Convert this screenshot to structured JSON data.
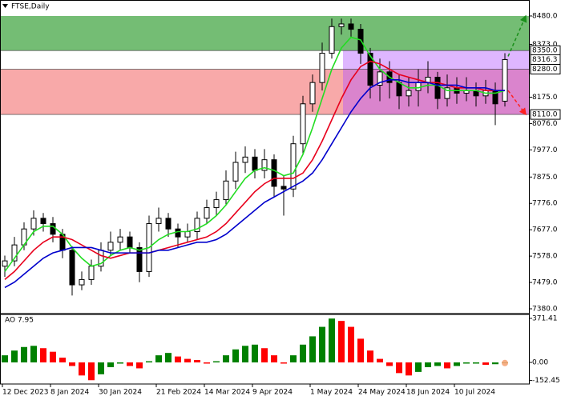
{
  "chart_data": [
    {
      "type": "candlestick",
      "title": "FTSE,Daily",
      "categories": [
        "12 Dec 2023",
        null,
        null,
        null,
        null,
        "8 Jan 2024",
        null,
        null,
        null,
        null,
        "30 Jan 2024",
        null,
        null,
        null,
        null,
        null,
        "21 Feb 2024",
        null,
        null,
        null,
        null,
        "14 Mar 2024",
        null,
        null,
        null,
        null,
        "9 Apr 2024",
        null,
        null,
        null,
        null,
        null,
        "1 May 2024",
        null,
        null,
        null,
        null,
        "24 May 2024",
        null,
        null,
        null,
        null,
        "18 Jun 2024",
        null,
        null,
        null,
        null,
        "10 Jul 2024",
        null,
        null,
        null,
        null,
        null
      ],
      "open": [
        7540,
        7560,
        7620,
        7680,
        7720,
        7700,
        7660,
        7600,
        7470,
        7490,
        7540,
        7600,
        7630,
        7650,
        7610,
        7520,
        7700,
        7720,
        7680,
        7650,
        7670,
        7720,
        7760,
        7790,
        7860,
        7930,
        7950,
        7900,
        7940,
        7840,
        7830,
        8000,
        8150,
        8230,
        8340,
        8440,
        8450,
        8430,
        8340,
        8220,
        8270,
        8230,
        8180,
        8200,
        8230,
        8250,
        8170,
        8210,
        8190,
        8200,
        8180,
        8200,
        8160
      ],
      "high": [
        7580,
        7650,
        7705,
        7750,
        7740,
        7725,
        7680,
        7615,
        7520,
        7565,
        7630,
        7670,
        7680,
        7670,
        7630,
        7730,
        7760,
        7740,
        7700,
        7700,
        7745,
        7790,
        7820,
        7900,
        7970,
        7990,
        7980,
        7980,
        7960,
        7880,
        8030,
        8180,
        8260,
        8380,
        8470,
        8470,
        8470,
        8450,
        8360,
        8320,
        8310,
        8260,
        8250,
        8280,
        8310,
        8270,
        8260,
        8250,
        8250,
        8230,
        8240,
        8230,
        8340
      ],
      "low": [
        7500,
        7540,
        7600,
        7655,
        7670,
        7630,
        7570,
        7430,
        7450,
        7470,
        7520,
        7580,
        7600,
        7590,
        7480,
        7500,
        7670,
        7650,
        7610,
        7630,
        7640,
        7700,
        7730,
        7770,
        7830,
        7890,
        7870,
        7870,
        7800,
        7730,
        7800,
        7960,
        8120,
        8200,
        8320,
        8410,
        8400,
        8300,
        8170,
        8160,
        8170,
        8130,
        8140,
        8140,
        8190,
        8130,
        8140,
        8150,
        8160,
        8140,
        8150,
        8070,
        8140
      ],
      "close": [
        7560,
        7620,
        7680,
        7720,
        7700,
        7660,
        7600,
        7470,
        7490,
        7540,
        7600,
        7630,
        7650,
        7610,
        7520,
        7700,
        7720,
        7680,
        7650,
        7670,
        7720,
        7760,
        7790,
        7860,
        7930,
        7950,
        7900,
        7940,
        7840,
        7830,
        8000,
        8150,
        8230,
        8340,
        8440,
        8450,
        8430,
        8340,
        8220,
        8270,
        8230,
        8180,
        8200,
        8230,
        8250,
        8170,
        8210,
        8190,
        8200,
        8180,
        8200,
        8150,
        8316.3
      ],
      "color": "#000000",
      "series": [
        {
          "color": "#22dd22",
          "values": [
            7520,
            7570,
            7620,
            7670,
            7690,
            7690,
            7660,
            7610,
            7570,
            7540,
            7550,
            7580,
            7600,
            7610,
            7600,
            7610,
            7640,
            7660,
            7670,
            7670,
            7680,
            7700,
            7730,
            7770,
            7820,
            7870,
            7900,
            7910,
            7900,
            7880,
            7890,
            7960,
            8060,
            8170,
            8280,
            8360,
            8400,
            8390,
            8330,
            8280,
            8250,
            8230,
            8210,
            8210,
            8220,
            8220,
            8200,
            8200,
            8200,
            8200,
            8190,
            8190,
            8200
          ]
        },
        {
          "color": "#e8001c",
          "values": [
            7490,
            7520,
            7560,
            7600,
            7630,
            7650,
            7650,
            7640,
            7620,
            7600,
            7580,
            7570,
            7580,
            7590,
            7590,
            7590,
            7600,
            7610,
            7620,
            7630,
            7640,
            7650,
            7670,
            7700,
            7740,
            7780,
            7820,
            7850,
            7870,
            7870,
            7870,
            7890,
            7940,
            8010,
            8090,
            8170,
            8240,
            8290,
            8310,
            8300,
            8280,
            8260,
            8250,
            8240,
            8230,
            8230,
            8220,
            8210,
            8210,
            8210,
            8200,
            8200,
            8200
          ]
        },
        {
          "color": "#0000cc",
          "values": [
            7460,
            7480,
            7510,
            7540,
            7570,
            7590,
            7600,
            7610,
            7610,
            7610,
            7600,
            7590,
            7590,
            7590,
            7590,
            7590,
            7600,
            7600,
            7610,
            7620,
            7630,
            7630,
            7640,
            7660,
            7690,
            7720,
            7750,
            7780,
            7800,
            7820,
            7840,
            7860,
            7890,
            7940,
            8000,
            8060,
            8120,
            8170,
            8210,
            8230,
            8240,
            8240,
            8230,
            8230,
            8230,
            8220,
            8220,
            8220,
            8210,
            8210,
            8210,
            8200,
            8200
          ]
        }
      ],
      "ylim": [
        7362,
        8540
      ],
      "yticks": [
        {
          "value": 7380,
          "label": "7380.0"
        },
        {
          "value": 7479,
          "label": "7479.0"
        },
        {
          "value": 7578,
          "label": "7578.0"
        },
        {
          "value": 7677,
          "label": "7677.0"
        },
        {
          "value": 7776,
          "label": "7776.0"
        },
        {
          "value": 7875,
          "label": "7875.0"
        },
        {
          "value": 7977,
          "label": "7977.0"
        },
        {
          "value": 8076,
          "label": "8076.0"
        },
        {
          "value": 8175,
          "label": "8175.0"
        },
        {
          "value": 8373,
          "label": "8373.0"
        },
        {
          "value": 8480,
          "label": "8480.0"
        }
      ],
      "zones": [
        {
          "from": 8350,
          "to": 8480,
          "color": "#74bd74"
        },
        {
          "from": 8110,
          "to": 8280,
          "color": "#f8a9a9"
        }
      ],
      "levels": [
        {
          "value": 8350,
          "label": "8350.0"
        },
        {
          "value": 8280,
          "label": "8280.0"
        },
        {
          "value": 8110,
          "label": "8110.0"
        }
      ],
      "last_price": {
        "value": 8316.3,
        "label": "8316.3"
      },
      "range_color": "#b050ff"
    },
    {
      "type": "bar",
      "title": "AO 7.95",
      "values": [
        60,
        100,
        130,
        140,
        120,
        90,
        40,
        -30,
        -110,
        -150,
        -100,
        -40,
        -10,
        -30,
        -50,
        10,
        60,
        80,
        50,
        30,
        20,
        -10,
        10,
        60,
        110,
        140,
        150,
        120,
        60,
        -10,
        60,
        150,
        220,
        300,
        370,
        350,
        300,
        200,
        100,
        30,
        -30,
        -90,
        -110,
        -80,
        -40,
        -30,
        -50,
        -30,
        -10,
        -10,
        -20,
        -15,
        -5
      ],
      "up_color": "#008000",
      "down_color": "#ff0000",
      "ylim": [
        -182,
        405
      ],
      "yticks": [
        {
          "value": -152.45,
          "label": "-152.45"
        },
        {
          "value": 0,
          "label": "0.00"
        },
        {
          "value": 371.41,
          "label": "371.41"
        }
      ]
    }
  ]
}
